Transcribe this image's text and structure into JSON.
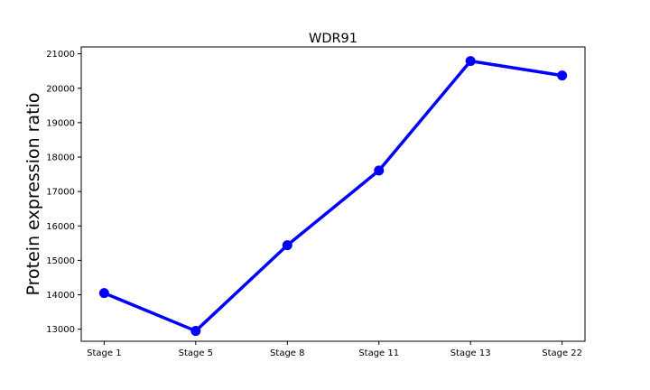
{
  "chart_data": {
    "type": "line",
    "title": "WDR91",
    "xlabel": "",
    "ylabel": "Protein expression ratio",
    "categories": [
      "Stage 1",
      "Stage 5",
      "Stage 8",
      "Stage 11",
      "Stage 13",
      "Stage 22"
    ],
    "series": [
      {
        "values": [
          14050,
          12950,
          15440,
          17610,
          20790,
          20370
        ],
        "color": "#0000ff",
        "marker": "circle"
      }
    ],
    "ylim": [
      12650,
      21200
    ],
    "yticks": [
      13000,
      14000,
      15000,
      16000,
      17000,
      18000,
      19000,
      20000,
      21000
    ],
    "grid": false,
    "legend": "none"
  }
}
